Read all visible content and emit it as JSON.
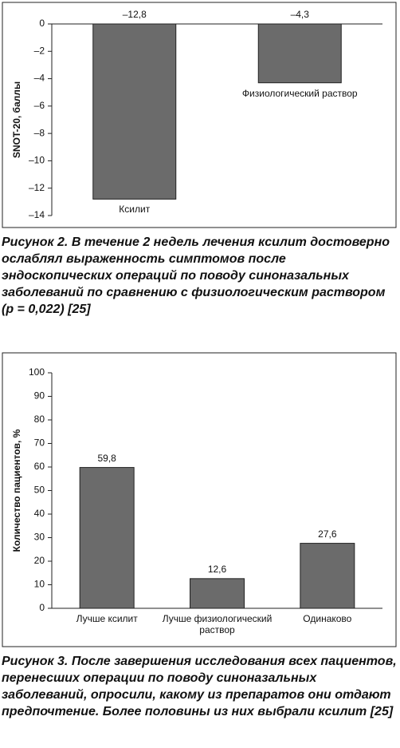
{
  "chart_data": [
    {
      "type": "bar",
      "y_label": "SNOT-20, баллы",
      "categories": [
        "Ксилит",
        "Физиологический раствор"
      ],
      "values": [
        -12.8,
        -4.3
      ],
      "value_labels": [
        "–12,8",
        "–4,3"
      ],
      "color": "#6b6b6b",
      "ylim": [
        -14,
        0
      ],
      "yticks": [
        0,
        {
          "value": -2,
          "label": "–2"
        },
        {
          "value": -4,
          "label": "–4"
        },
        {
          "value": -6,
          "label": "–6"
        },
        {
          "value": -8,
          "label": "–8"
        },
        {
          "value": -10,
          "label": "–10"
        },
        {
          "value": -12,
          "label": "–12"
        },
        {
          "value": -14,
          "label": "–14"
        }
      ],
      "caption": "Рисунок 2. В течение 2 недель лечения ксилит достоверно ослаблял выраженность симптомов после эндоскопических операций по поводу синоназальных заболеваний по сравнению с физиологическим раствором (p = 0,022) [25]"
    },
    {
      "type": "bar",
      "y_label": "Количество пациентов, %",
      "categories": [
        "Лучше ксилит",
        "Лучше физиологический раствор",
        "Одинаково"
      ],
      "values": [
        59.8,
        12.6,
        27.6
      ],
      "value_labels": [
        "59,8",
        "12,6",
        "27,6"
      ],
      "color": "#6b6b6b",
      "ylim": [
        0,
        100
      ],
      "yticks": [
        0,
        10,
        20,
        30,
        40,
        50,
        60,
        70,
        80,
        90,
        100
      ],
      "caption": "Рисунок 3. После завершения исследования всех пациентов, перенесших операции по поводу синоназальных заболеваний, опросили, какому из препаратов они отдают предпочтение. Более половины из них выбрали ксилит [25]"
    }
  ]
}
